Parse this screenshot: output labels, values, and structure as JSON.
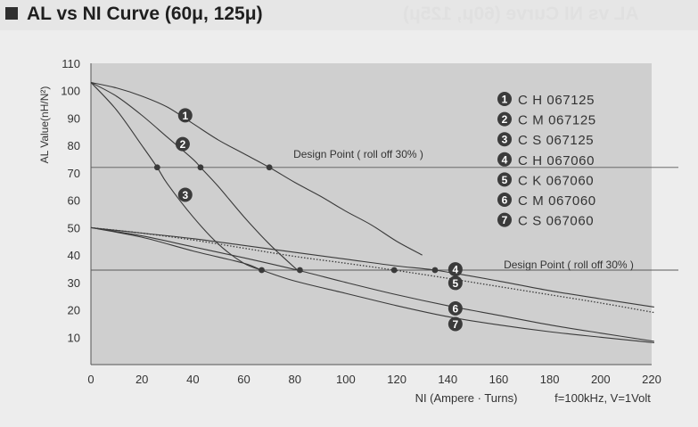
{
  "header": {
    "title": "AL vs NI Curve (60μ, 125μ)",
    "ghost_text": "AL vs NI Curve (60μ, 125μ)"
  },
  "chart_data": {
    "type": "line",
    "title": "AL vs NI Curve (60μ, 125μ)",
    "xlabel": "NI (Ampere · Turns)",
    "ylabel": "AL Value(nH/N²)",
    "xlim": [
      0,
      220
    ],
    "ylim": [
      0,
      110
    ],
    "x_ticks": [
      0,
      20,
      40,
      60,
      80,
      100,
      120,
      140,
      160,
      180,
      200,
      220
    ],
    "y_ticks": [
      10,
      20,
      30,
      40,
      50,
      60,
      70,
      80,
      90,
      100,
      110
    ],
    "grid": false,
    "legend_position": "top-right",
    "note": "f=100kHz, V=1Volt",
    "colors": {
      "plot_bg": "#cfcfcf",
      "line": "#3a3a3a",
      "marker": "#3a3a3a",
      "badge_bg": "#3b3b3b",
      "badge_text": "#ffffff"
    },
    "design_points": [
      {
        "label": "Design Point ( roll off 30% )",
        "y": 72
      },
      {
        "label": "Design Point ( roll off 30% )",
        "y": 34.5
      }
    ],
    "series": [
      {
        "number": "1",
        "name": "C H 067125",
        "style": "solid",
        "x": [
          0,
          10,
          20,
          30,
          40,
          50,
          60,
          70,
          80,
          90,
          100,
          110,
          120,
          130
        ],
        "y": [
          103,
          101,
          98,
          94,
          88,
          82,
          77,
          72,
          66.5,
          61.5,
          56,
          51,
          45,
          40
        ],
        "label_point": [
          37,
          91
        ]
      },
      {
        "number": "2",
        "name": "C M 067125",
        "style": "solid",
        "x": [
          0,
          10,
          20,
          30,
          40,
          43,
          50,
          60,
          70,
          81
        ],
        "y": [
          103,
          98,
          91,
          83,
          75,
          72,
          65,
          54,
          44,
          34.5
        ],
        "label_point": [
          36,
          80.5
        ]
      },
      {
        "number": "3",
        "name": "C S 067125",
        "style": "solid",
        "x": [
          0,
          10,
          20,
          26,
          30,
          40,
          50,
          60,
          67
        ],
        "y": [
          103,
          93,
          80,
          72,
          66,
          54,
          44,
          37,
          34.5
        ],
        "label_point": [
          37,
          62
        ]
      },
      {
        "number": "4",
        "name": "C H 067060",
        "style": "solid",
        "x": [
          0,
          20,
          40,
          60,
          80,
          100,
          120,
          135,
          160,
          180,
          200,
          221
        ],
        "y": [
          50,
          48,
          46,
          43.5,
          41,
          38.5,
          36,
          34.5,
          30.5,
          27,
          24,
          21
        ],
        "label_point": [
          143,
          34.8
        ]
      },
      {
        "number": "5",
        "name": "C K 067060",
        "style": "dotted",
        "x": [
          0,
          20,
          40,
          60,
          80,
          100,
          119,
          140,
          160,
          180,
          200,
          221
        ],
        "y": [
          50,
          48,
          45.5,
          42.5,
          39.5,
          37,
          34.5,
          31.5,
          28.5,
          25.5,
          22.5,
          19
        ],
        "label_point": [
          143,
          29.8
        ]
      },
      {
        "number": "6",
        "name": "C M 067060",
        "style": "solid",
        "x": [
          0,
          20,
          40,
          60,
          81,
          100,
          120,
          140,
          160,
          180,
          200,
          221
        ],
        "y": [
          50,
          47,
          43,
          39,
          34.5,
          30,
          25.5,
          21.5,
          18,
          14.5,
          11.5,
          8.5
        ],
        "label_point": [
          143,
          20.5
        ]
      },
      {
        "number": "7",
        "name": "C S 067060",
        "style": "solid",
        "x": [
          0,
          20,
          40,
          60,
          67,
          80,
          100,
          120,
          140,
          160,
          180,
          200,
          221
        ],
        "y": [
          50,
          46.5,
          41.5,
          37,
          34.5,
          30.5,
          26,
          21.5,
          17.5,
          14.5,
          12,
          10,
          8
        ],
        "label_point": [
          143,
          14.8
        ]
      }
    ],
    "markers": [
      {
        "x": 26,
        "y": 72
      },
      {
        "x": 43,
        "y": 72
      },
      {
        "x": 70,
        "y": 72
      },
      {
        "x": 67,
        "y": 34.5
      },
      {
        "x": 82,
        "y": 34.5
      },
      {
        "x": 119,
        "y": 34.5
      },
      {
        "x": 135,
        "y": 34.5
      }
    ]
  }
}
